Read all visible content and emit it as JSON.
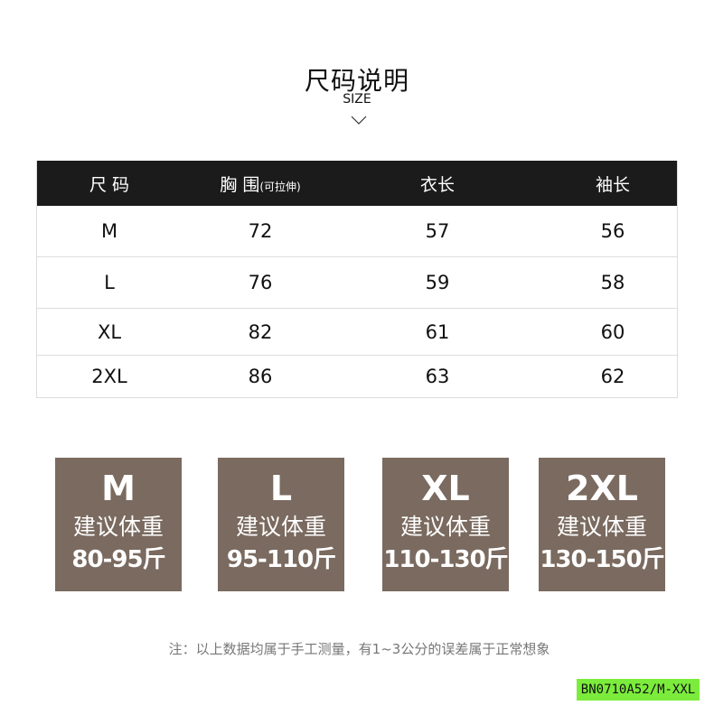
{
  "header": {
    "title": "尺码说明",
    "subtitle": "SIZE",
    "icon": "chevron-down-icon"
  },
  "table": {
    "columns": [
      {
        "label": "尺 码"
      },
      {
        "label": "胸 围",
        "note": "(可拉伸)"
      },
      {
        "label": "衣长"
      },
      {
        "label": "袖长"
      }
    ],
    "rows": [
      [
        "M",
        "72",
        "57",
        "56"
      ],
      [
        "L",
        "76",
        "59",
        "58"
      ],
      [
        "XL",
        "82",
        "61",
        "60"
      ],
      [
        "2XL",
        "86",
        "63",
        "62"
      ]
    ]
  },
  "cards": [
    {
      "size": "M",
      "label": "建议体重",
      "weight": "80-95斤"
    },
    {
      "size": "L",
      "label": "建议体重",
      "weight": "95-110斤"
    },
    {
      "size": "XL",
      "label": "建议体重",
      "weight": "110-130斤"
    },
    {
      "size": "2XL",
      "label": "建议体重",
      "weight": "130-150斤"
    }
  ],
  "note": "注：以上数据均属于手工测量，有1~3公分的误差属于正常想象",
  "product_code": "BN0710A52/M-XXL",
  "colors": {
    "header_bg": "#1b1b1b",
    "card_bg": "#7a6a5f",
    "code_bg": "#7cec3c"
  }
}
